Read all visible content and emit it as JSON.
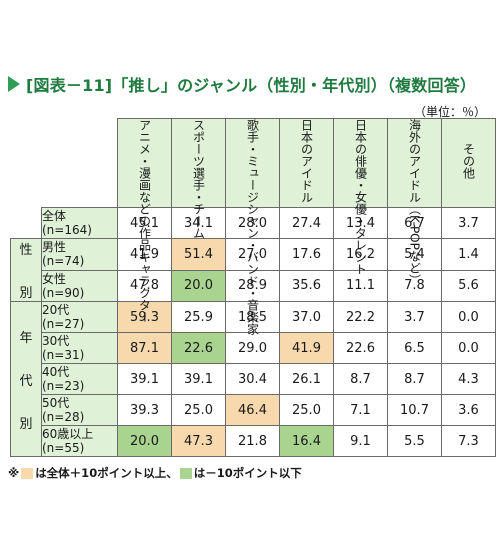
{
  "header": {
    "title": "[図表－11]「推し」のジャンル（性別・年代別）（複数回答）",
    "unit": "（単位：％）",
    "accent_color": "#2e9e57"
  },
  "legend": {
    "prefix": "※",
    "hi_text": "は全体＋10ポイント以上、",
    "lo_text": "は－10ポイント以下",
    "hi_color": "#f8d9ae",
    "lo_color": "#a9d490"
  },
  "chart_data": {
    "type": "table",
    "title": "[図表－11]「推し」のジャンル（性別・年代別）（複数回答）",
    "unit": "単位：％",
    "columns": [
      "アニメ・漫画などの作品キャラクター",
      "スポーツ選手・チーム",
      "歌手・ミュージシャン・バンド・音楽家",
      "日本のアイドル",
      "日本の俳優・女優・タレント",
      "海外のアイドル（K-POPなど）",
      "その他"
    ],
    "groups": [
      {
        "name": "",
        "rows": [
          0
        ]
      },
      {
        "name": "性別",
        "rows": [
          1,
          2
        ]
      },
      {
        "name": "年代別",
        "rows": [
          3,
          4,
          5,
          6,
          7
        ]
      }
    ],
    "rows": [
      {
        "label": "全体",
        "n": "(n=164)",
        "values": [
          45.1,
          34.1,
          28.0,
          27.4,
          13.4,
          6.7,
          3.7
        ],
        "flags": [
          "",
          "",
          "",
          "",
          "",
          "",
          ""
        ]
      },
      {
        "label": "男性",
        "n": "(n=74)",
        "values": [
          41.9,
          51.4,
          27.0,
          17.6,
          16.2,
          5.4,
          1.4
        ],
        "flags": [
          "",
          "hi",
          "",
          "",
          "",
          "",
          ""
        ]
      },
      {
        "label": "女性",
        "n": "(n=90)",
        "values": [
          47.8,
          20.0,
          28.9,
          35.6,
          11.1,
          7.8,
          5.6
        ],
        "flags": [
          "",
          "lo",
          "",
          "",
          "",
          "",
          ""
        ]
      },
      {
        "label": "20代",
        "n": "(n=27)",
        "values": [
          59.3,
          25.9,
          18.5,
          37.0,
          22.2,
          3.7,
          0.0
        ],
        "flags": [
          "hi",
          "",
          "",
          "",
          "",
          "",
          ""
        ]
      },
      {
        "label": "30代",
        "n": "(n=31)",
        "values": [
          87.1,
          22.6,
          29.0,
          41.9,
          22.6,
          6.5,
          0.0
        ],
        "flags": [
          "hi",
          "lo",
          "",
          "hi",
          "",
          "",
          ""
        ]
      },
      {
        "label": "40代",
        "n": "(n=23)",
        "values": [
          39.1,
          39.1,
          30.4,
          26.1,
          8.7,
          8.7,
          4.3
        ],
        "flags": [
          "",
          "",
          "",
          "",
          "",
          "",
          ""
        ]
      },
      {
        "label": "50代",
        "n": "(n=28)",
        "values": [
          39.3,
          25.0,
          46.4,
          25.0,
          7.1,
          10.7,
          3.6
        ],
        "flags": [
          "",
          "",
          "hi",
          "",
          "",
          "",
          ""
        ]
      },
      {
        "label": "60歳以上",
        "n": "(n=55)",
        "values": [
          20.0,
          47.3,
          21.8,
          16.4,
          9.1,
          5.5,
          7.3
        ],
        "flags": [
          "lo",
          "hi",
          "",
          "lo",
          "",
          "",
          ""
        ]
      }
    ]
  }
}
